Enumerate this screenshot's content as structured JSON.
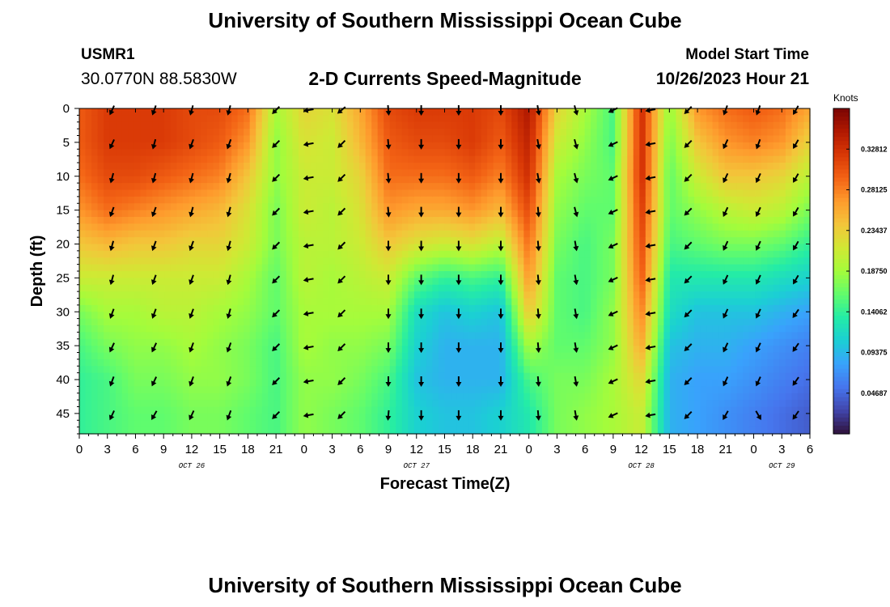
{
  "header": {
    "title": "University of Southern Mississippi Ocean Cube",
    "station": "USMR1",
    "coords": "30.0770N  88.5830W",
    "chart_title": "2-D Currents Speed-Magnitude",
    "model_label": "Model Start Time",
    "model_time": "10/26/2023 Hour 21"
  },
  "footer": {
    "title": "University of Southern Mississippi Ocean Cube"
  },
  "chart_data": {
    "type": "heatmap",
    "title": "2-D Currents Speed-Magnitude",
    "xlabel": "Forecast Time(Z)",
    "ylabel": "Depth (ft)",
    "x_ticks": [
      "0",
      "3",
      "6",
      "9",
      "12",
      "15",
      "18",
      "21",
      "0",
      "3",
      "6",
      "9",
      "12",
      "15",
      "18",
      "21",
      "0",
      "3",
      "6",
      "9",
      "12",
      "15",
      "18",
      "21",
      "0",
      "3",
      "6"
    ],
    "x_hours_range": [
      0,
      78
    ],
    "date_labels": [
      {
        "label": "OCT 26",
        "hour": 12
      },
      {
        "label": "OCT 27",
        "hour": 36
      },
      {
        "label": "OCT 28",
        "hour": 60
      },
      {
        "label": "OCT 29",
        "hour": 75
      }
    ],
    "y_ticks": [
      0,
      5,
      10,
      15,
      20,
      25,
      30,
      35,
      40,
      45
    ],
    "y_range": [
      0,
      48
    ],
    "colorbar": {
      "label": "Knots",
      "ticks": [
        "0.32812",
        "0.28125",
        "0.23437",
        "0.18750",
        "0.14062",
        "0.09375",
        "0.04687"
      ],
      "tick_values": [
        0.32812,
        0.28125,
        0.23437,
        0.1875,
        0.14062,
        0.09375,
        0.04687
      ],
      "range": [
        0.0,
        0.375
      ],
      "colors": [
        "#30123b",
        "#4145ab",
        "#4675ed",
        "#39a2fc",
        "#1bcfd4",
        "#24eca6",
        "#61fc6c",
        "#a4fc3b",
        "#d1e834",
        "#f3c63a",
        "#fe9b2d",
        "#f36315",
        "#d93806",
        "#b11901",
        "#7a0403"
      ]
    },
    "depths_ft": [
      0,
      5,
      10,
      15,
      20,
      25,
      30,
      35,
      40,
      45
    ],
    "speed_columns_hours": [
      0,
      3,
      6,
      9,
      12,
      15,
      18,
      21,
      24,
      27,
      30,
      33,
      36,
      39,
      42,
      45,
      48,
      51,
      54,
      57,
      60,
      63,
      66,
      69,
      72,
      75,
      78
    ],
    "speed_knots": [
      [
        0.3,
        0.3,
        0.29,
        0.27,
        0.24,
        0.21,
        0.17,
        0.15,
        0.14,
        0.14
      ],
      [
        0.32,
        0.32,
        0.31,
        0.29,
        0.25,
        0.21,
        0.19,
        0.17,
        0.15,
        0.15
      ],
      [
        0.32,
        0.32,
        0.31,
        0.28,
        0.24,
        0.21,
        0.19,
        0.18,
        0.17,
        0.16
      ],
      [
        0.32,
        0.32,
        0.3,
        0.27,
        0.24,
        0.21,
        0.2,
        0.18,
        0.17,
        0.16
      ],
      [
        0.31,
        0.31,
        0.29,
        0.26,
        0.23,
        0.21,
        0.2,
        0.19,
        0.18,
        0.17
      ],
      [
        0.31,
        0.3,
        0.28,
        0.25,
        0.23,
        0.21,
        0.19,
        0.18,
        0.18,
        0.17
      ],
      [
        0.29,
        0.27,
        0.24,
        0.22,
        0.21,
        0.19,
        0.18,
        0.17,
        0.17,
        0.16
      ],
      [
        0.19,
        0.18,
        0.18,
        0.17,
        0.17,
        0.16,
        0.16,
        0.15,
        0.15,
        0.15
      ],
      [
        0.23,
        0.22,
        0.21,
        0.21,
        0.2,
        0.2,
        0.19,
        0.19,
        0.18,
        0.18
      ],
      [
        0.22,
        0.21,
        0.21,
        0.2,
        0.2,
        0.19,
        0.19,
        0.18,
        0.18,
        0.17
      ],
      [
        0.26,
        0.25,
        0.23,
        0.22,
        0.21,
        0.2,
        0.19,
        0.18,
        0.17,
        0.16
      ],
      [
        0.31,
        0.3,
        0.29,
        0.27,
        0.24,
        0.21,
        0.19,
        0.17,
        0.15,
        0.14
      ],
      [
        0.32,
        0.31,
        0.29,
        0.26,
        0.22,
        0.16,
        0.12,
        0.11,
        0.1,
        0.11
      ],
      [
        0.32,
        0.31,
        0.29,
        0.26,
        0.21,
        0.14,
        0.1,
        0.09,
        0.09,
        0.1
      ],
      [
        0.32,
        0.32,
        0.3,
        0.27,
        0.22,
        0.15,
        0.11,
        0.09,
        0.09,
        0.1
      ],
      [
        0.31,
        0.3,
        0.28,
        0.25,
        0.2,
        0.14,
        0.1,
        0.09,
        0.09,
        0.11
      ],
      [
        0.35,
        0.34,
        0.33,
        0.31,
        0.29,
        0.27,
        0.24,
        0.19,
        0.15,
        0.13
      ],
      [
        0.23,
        0.21,
        0.19,
        0.18,
        0.17,
        0.16,
        0.16,
        0.16,
        0.17,
        0.17
      ],
      [
        0.19,
        0.18,
        0.17,
        0.16,
        0.15,
        0.15,
        0.15,
        0.16,
        0.17,
        0.18
      ],
      [
        0.15,
        0.15,
        0.16,
        0.16,
        0.17,
        0.17,
        0.18,
        0.18,
        0.19,
        0.19
      ],
      [
        0.33,
        0.33,
        0.33,
        0.32,
        0.31,
        0.3,
        0.28,
        0.26,
        0.23,
        0.21
      ],
      [
        0.18,
        0.17,
        0.16,
        0.16,
        0.15,
        0.13,
        0.12,
        0.1,
        0.09,
        0.09
      ],
      [
        0.27,
        0.24,
        0.21,
        0.18,
        0.16,
        0.13,
        0.1,
        0.09,
        0.08,
        0.08
      ],
      [
        0.29,
        0.27,
        0.24,
        0.2,
        0.17,
        0.13,
        0.1,
        0.09,
        0.08,
        0.07
      ],
      [
        0.3,
        0.28,
        0.24,
        0.21,
        0.17,
        0.13,
        0.1,
        0.08,
        0.07,
        0.06
      ],
      [
        0.29,
        0.27,
        0.23,
        0.2,
        0.16,
        0.12,
        0.09,
        0.07,
        0.06,
        0.05
      ],
      [
        0.26,
        0.23,
        0.2,
        0.17,
        0.14,
        0.11,
        0.08,
        0.06,
        0.05,
        0.04
      ]
    ],
    "arrow_columns_hours": [
      3.5,
      8,
      12,
      16,
      21,
      24.5,
      28,
      33,
      36.5,
      40.5,
      45,
      49,
      53,
      57,
      61,
      65,
      69,
      72.5,
      76.5
    ],
    "arrow_direction_deg": [
      [
        205,
        205,
        195,
        200,
        195,
        195,
        200,
        205,
        200,
        205
      ],
      [
        200,
        195,
        195,
        200,
        200,
        200,
        200,
        205,
        205,
        210
      ],
      [
        195,
        200,
        195,
        195,
        200,
        200,
        200,
        200,
        200,
        205
      ],
      [
        195,
        200,
        195,
        195,
        195,
        195,
        195,
        200,
        200,
        200
      ],
      [
        225,
        225,
        225,
        225,
        225,
        225,
        225,
        225,
        225,
        225
      ],
      [
        260,
        260,
        260,
        260,
        260,
        260,
        260,
        260,
        260,
        260
      ],
      [
        230,
        225,
        225,
        225,
        225,
        225,
        225,
        225,
        225,
        225
      ],
      [
        175,
        175,
        175,
        175,
        180,
        180,
        180,
        180,
        180,
        185
      ],
      [
        180,
        180,
        180,
        180,
        180,
        180,
        180,
        180,
        180,
        180
      ],
      [
        180,
        180,
        180,
        180,
        180,
        180,
        180,
        180,
        180,
        180
      ],
      [
        180,
        180,
        180,
        180,
        180,
        180,
        180,
        180,
        180,
        180
      ],
      [
        170,
        170,
        170,
        175,
        175,
        175,
        175,
        175,
        175,
        175
      ],
      [
        165,
        165,
        165,
        165,
        170,
        170,
        170,
        170,
        170,
        170
      ],
      [
        245,
        245,
        245,
        245,
        245,
        245,
        245,
        245,
        245,
        245
      ],
      [
        260,
        260,
        260,
        260,
        260,
        260,
        260,
        260,
        260,
        260
      ],
      [
        225,
        225,
        225,
        225,
        225,
        225,
        225,
        225,
        225,
        225
      ],
      [
        200,
        205,
        205,
        205,
        205,
        205,
        205,
        205,
        205,
        210
      ],
      [
        200,
        200,
        205,
        205,
        205,
        205,
        205,
        205,
        205,
        150
      ],
      [
        210,
        210,
        210,
        210,
        210,
        210,
        215,
        215,
        215,
        215
      ]
    ]
  }
}
